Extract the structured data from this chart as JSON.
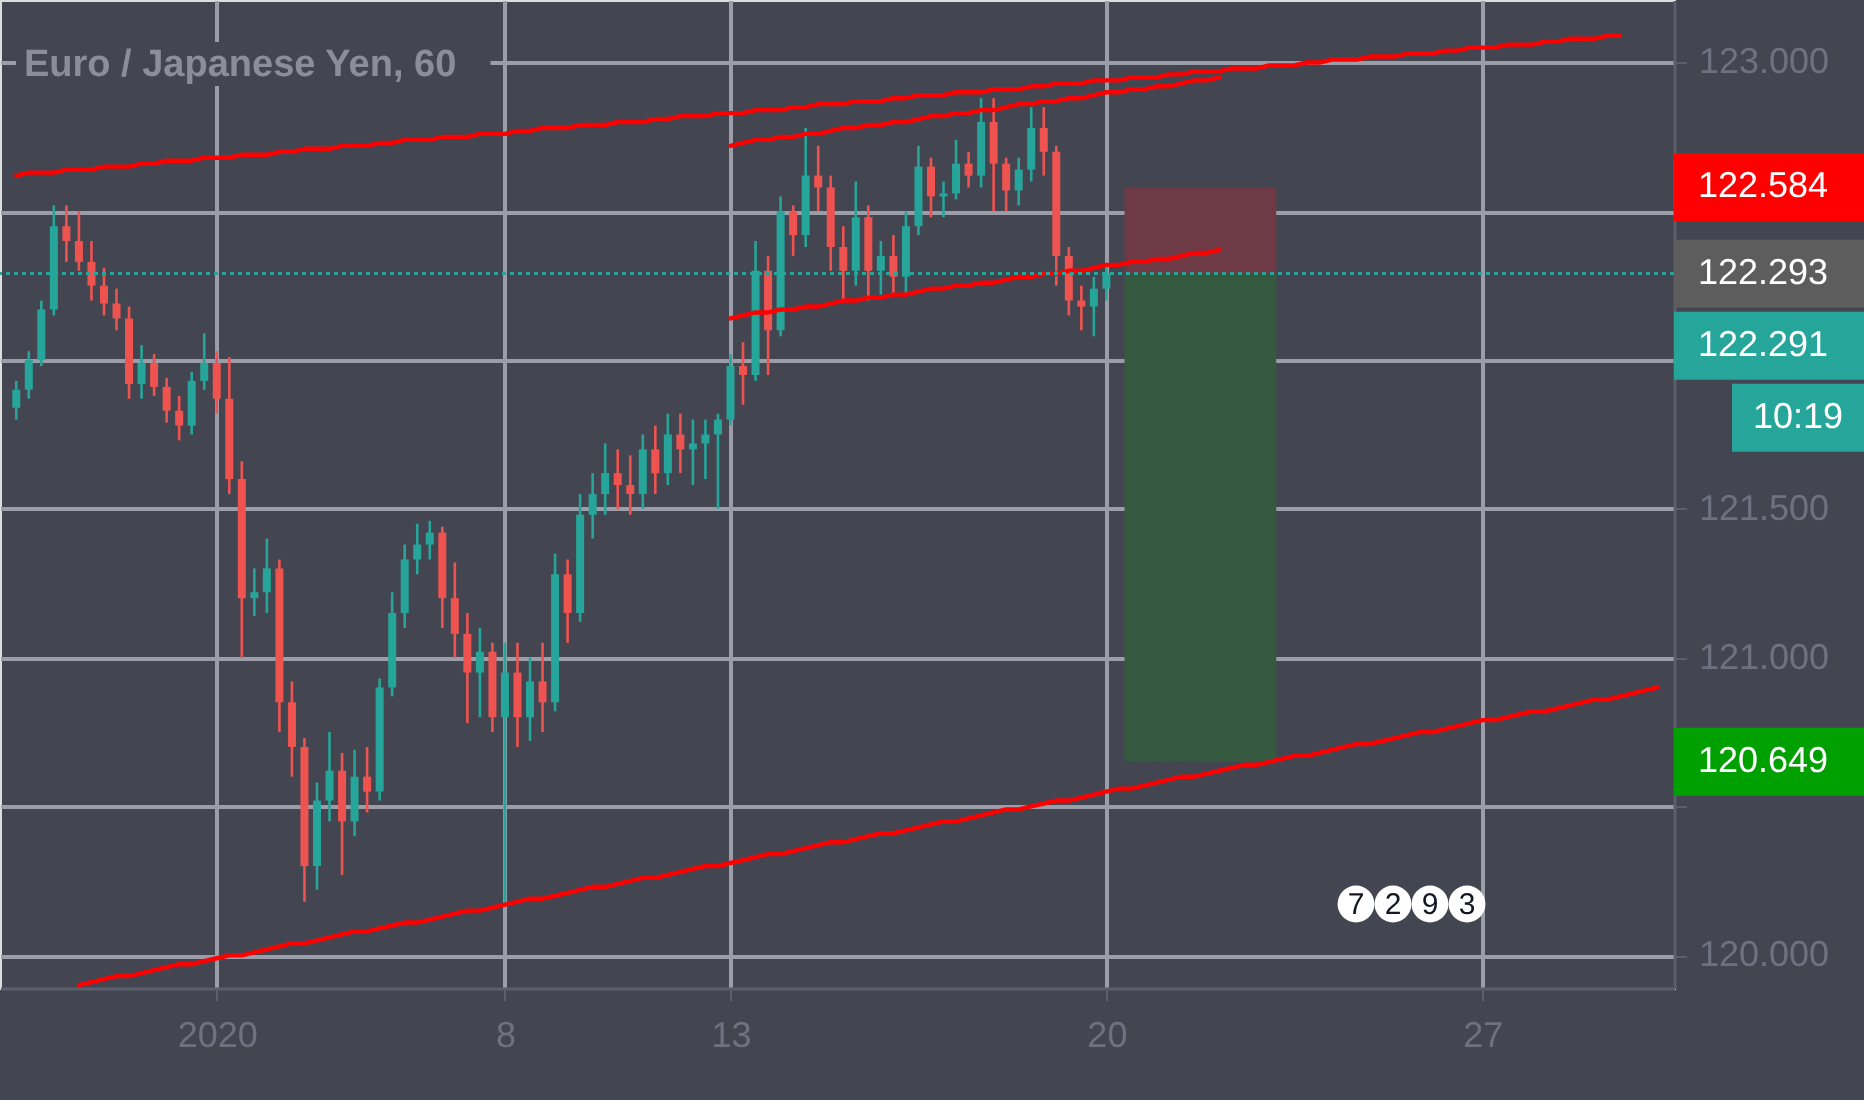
{
  "chart_data": {
    "type": "candlestick",
    "title": "Euro / Japanese Yen, 60",
    "categories": [
      null,
      null,
      null,
      null,
      null,
      null,
      null,
      null,
      null,
      null,
      null,
      null,
      null,
      null,
      null,
      null,
      "2020",
      null,
      null,
      null,
      null,
      null,
      null,
      null,
      null,
      null,
      null,
      null,
      null,
      null,
      null,
      null,
      null,
      null,
      null,
      null,
      null,
      null,
      null,
      "8",
      null,
      null,
      null,
      null,
      null,
      null,
      null,
      null,
      null,
      null,
      null,
      null,
      null,
      null,
      null,
      null,
      null,
      "13",
      null,
      null,
      null,
      null,
      null,
      null,
      null,
      null,
      null,
      null,
      null,
      null,
      null,
      null,
      null,
      null,
      null,
      null,
      null,
      null,
      null,
      null,
      null,
      null,
      null,
      null,
      null,
      null,
      null,
      "20",
      null,
      null,
      null,
      null,
      null,
      null,
      null,
      null,
      null,
      null,
      null,
      null,
      null,
      null,
      null,
      null,
      null,
      null,
      null,
      null,
      null,
      null,
      null,
      null,
      null,
      null,
      null,
      null,
      null,
      "27",
      null,
      null,
      null,
      null,
      null,
      null,
      null,
      null,
      null,
      null,
      null,
      null,
      null,
      null
    ],
    "ohlc": [
      [
        121.84,
        121.93,
        121.8,
        121.9
      ],
      [
        121.9,
        122.03,
        121.87,
        122.0
      ],
      [
        122.0,
        122.2,
        121.98,
        122.17
      ],
      [
        122.17,
        122.52,
        122.15,
        122.45
      ],
      [
        122.45,
        122.52,
        122.33,
        122.4
      ],
      [
        122.4,
        122.5,
        122.3,
        122.33
      ],
      [
        122.33,
        122.4,
        122.2,
        122.25
      ],
      [
        122.25,
        122.31,
        122.15,
        122.19
      ],
      [
        122.19,
        122.24,
        122.1,
        122.14
      ],
      [
        122.14,
        122.18,
        121.87,
        121.92
      ],
      [
        121.92,
        122.05,
        121.87,
        121.99
      ],
      [
        121.99,
        122.02,
        121.88,
        121.91
      ],
      [
        121.91,
        121.94,
        121.79,
        121.83
      ],
      [
        121.83,
        121.88,
        121.73,
        121.78
      ],
      [
        121.78,
        121.96,
        121.75,
        121.93
      ],
      [
        121.93,
        122.09,
        121.9,
        121.99
      ],
      [
        121.99,
        122.03,
        121.82,
        121.87
      ],
      [
        121.87,
        122.01,
        121.55,
        121.6
      ],
      [
        121.6,
        121.66,
        121.0,
        121.2
      ],
      [
        121.2,
        121.3,
        121.14,
        121.22
      ],
      [
        121.22,
        121.4,
        121.15,
        121.3
      ],
      [
        121.3,
        121.33,
        120.75,
        120.85
      ],
      [
        120.85,
        120.92,
        120.6,
        120.7
      ],
      [
        120.7,
        120.73,
        120.18,
        120.3
      ],
      [
        120.3,
        120.58,
        120.22,
        120.52
      ],
      [
        120.52,
        120.75,
        120.45,
        120.62
      ],
      [
        120.62,
        120.68,
        120.27,
        120.45
      ],
      [
        120.45,
        120.69,
        120.4,
        120.6
      ],
      [
        120.6,
        120.7,
        120.48,
        120.55
      ],
      [
        120.55,
        120.93,
        120.52,
        120.9
      ],
      [
        120.9,
        121.22,
        120.87,
        121.15
      ],
      [
        121.15,
        121.38,
        121.1,
        121.33
      ],
      [
        121.33,
        121.45,
        121.28,
        121.38
      ],
      [
        121.38,
        121.46,
        121.33,
        121.42
      ],
      [
        121.42,
        121.44,
        121.1,
        121.2
      ],
      [
        121.2,
        121.32,
        121.0,
        121.08
      ],
      [
        121.08,
        121.15,
        120.78,
        120.95
      ],
      [
        120.95,
        121.1,
        120.8,
        121.02
      ],
      [
        121.02,
        121.05,
        120.75,
        120.8
      ],
      [
        120.8,
        121.05,
        120.17,
        120.95
      ],
      [
        120.95,
        121.05,
        120.7,
        120.8
      ],
      [
        120.8,
        121.0,
        120.72,
        120.92
      ],
      [
        120.92,
        121.05,
        120.75,
        120.85
      ],
      [
        120.85,
        121.35,
        120.82,
        121.28
      ],
      [
        121.28,
        121.33,
        121.05,
        121.15
      ],
      [
        121.15,
        121.55,
        121.12,
        121.48
      ],
      [
        121.48,
        121.62,
        121.4,
        121.55
      ],
      [
        121.55,
        121.72,
        121.48,
        121.62
      ],
      [
        121.62,
        121.7,
        121.5,
        121.58
      ],
      [
        121.58,
        121.68,
        121.48,
        121.55
      ],
      [
        121.55,
        121.75,
        121.5,
        121.7
      ],
      [
        121.7,
        121.78,
        121.55,
        121.62
      ],
      [
        121.62,
        121.82,
        121.58,
        121.75
      ],
      [
        121.75,
        121.82,
        121.62,
        121.7
      ],
      [
        121.7,
        121.8,
        121.58,
        121.72
      ],
      [
        121.72,
        121.8,
        121.6,
        121.75
      ],
      [
        121.75,
        121.82,
        121.5,
        121.8
      ],
      [
        121.8,
        122.02,
        121.78,
        121.98
      ],
      [
        121.98,
        122.06,
        121.85,
        121.95
      ],
      [
        121.95,
        122.4,
        121.93,
        122.3
      ],
      [
        122.3,
        122.35,
        121.95,
        122.1
      ],
      [
        122.1,
        122.55,
        122.08,
        122.5
      ],
      [
        122.5,
        122.52,
        122.35,
        122.42
      ],
      [
        122.42,
        122.78,
        122.38,
        122.62
      ],
      [
        122.62,
        122.72,
        122.5,
        122.58
      ],
      [
        122.58,
        122.62,
        122.3,
        122.38
      ],
      [
        122.38,
        122.45,
        122.2,
        122.3
      ],
      [
        122.3,
        122.6,
        122.25,
        122.48
      ],
      [
        122.48,
        122.52,
        122.2,
        122.3
      ],
      [
        122.3,
        122.4,
        122.22,
        122.35
      ],
      [
        122.35,
        122.42,
        122.22,
        122.28
      ],
      [
        122.28,
        122.5,
        122.22,
        122.45
      ],
      [
        122.45,
        122.72,
        122.42,
        122.65
      ],
      [
        122.65,
        122.68,
        122.48,
        122.55
      ],
      [
        122.55,
        122.6,
        122.48,
        122.56
      ],
      [
        122.56,
        122.74,
        122.54,
        122.66
      ],
      [
        122.66,
        122.7,
        122.58,
        122.62
      ],
      [
        122.62,
        122.88,
        122.58,
        122.8
      ],
      [
        122.8,
        122.88,
        122.5,
        122.66
      ],
      [
        122.66,
        122.68,
        122.5,
        122.57
      ],
      [
        122.57,
        122.68,
        122.52,
        122.64
      ],
      [
        122.64,
        122.85,
        122.6,
        122.78
      ],
      [
        122.78,
        122.85,
        122.62,
        122.7
      ],
      [
        122.7,
        122.72,
        122.25,
        122.35
      ],
      [
        122.35,
        122.38,
        122.15,
        122.2
      ],
      [
        122.2,
        122.25,
        122.1,
        122.18
      ],
      [
        122.18,
        122.28,
        122.08,
        122.24
      ],
      [
        122.24,
        122.32,
        122.2,
        122.291
      ],
      null,
      null,
      null,
      null,
      null,
      null,
      null,
      null,
      null,
      null,
      null,
      null,
      null,
      null,
      null,
      null,
      null,
      null,
      null,
      null,
      null,
      null,
      null,
      null,
      null,
      null,
      null,
      null,
      null,
      null,
      null,
      null,
      null,
      null,
      null,
      null,
      null,
      null,
      null,
      null,
      null,
      null,
      null,
      null
    ],
    "colors": [
      "#26a69a",
      "#26a69a",
      "#26a69a",
      "#26a69a",
      "#ef5350",
      "#ef5350",
      "#ef5350",
      "#ef5350",
      "#ef5350",
      "#ef5350",
      "#26a69a",
      "#ef5350",
      "#ef5350",
      "#ef5350",
      "#26a69a",
      "#26a69a",
      "#ef5350",
      "#ef5350",
      "#ef5350",
      "#26a69a",
      "#26a69a",
      "#ef5350",
      "#ef5350",
      "#ef5350",
      "#26a69a",
      "#26a69a",
      "#ef5350",
      "#26a69a",
      "#ef5350",
      "#26a69a",
      "#26a69a",
      "#26a69a",
      "#26a69a",
      "#26a69a",
      "#ef5350",
      "#ef5350",
      "#ef5350",
      "#26a69a",
      "#ef5350",
      "#26a69a",
      "#ef5350",
      "#26a69a",
      "#ef5350",
      "#26a69a",
      "#ef5350",
      "#26a69a",
      "#26a69a",
      "#26a69a",
      "#ef5350",
      "#ef5350",
      "#26a69a",
      "#ef5350",
      "#26a69a",
      "#ef5350",
      "#26a69a",
      "#26a69a",
      "#26a69a",
      "#26a69a",
      "#ef5350",
      "#26a69a",
      "#ef5350",
      "#26a69a",
      "#ef5350",
      "#26a69a",
      "#ef5350",
      "#ef5350",
      "#ef5350",
      "#26a69a",
      "#ef5350",
      "#26a69a",
      "#ef5350",
      "#26a69a",
      "#26a69a",
      "#ef5350",
      "#26a69a",
      "#26a69a",
      "#ef5350",
      "#26a69a",
      "#ef5350",
      "#ef5350",
      "#26a69a",
      "#26a69a",
      "#ef5350",
      "#ef5350",
      "#ef5350",
      "#ef5350",
      "#26a69a",
      "#26a69a",
      null,
      null,
      null,
      null,
      null,
      null,
      null,
      null,
      null,
      null,
      null,
      null,
      null,
      null,
      null,
      null,
      null,
      null,
      null,
      null,
      null,
      null,
      null,
      null,
      null,
      null,
      null,
      null,
      null,
      null,
      null,
      null,
      null,
      null,
      null,
      null,
      null,
      null,
      null,
      null,
      null,
      null,
      null,
      null
    ],
    "series": [
      {
        "type": "bar",
        "color": "#6e3a46",
        "base": [
          null,
          null,
          null,
          null,
          null,
          null,
          null,
          null,
          null,
          null,
          null,
          null,
          null,
          null,
          null,
          null,
          null,
          null,
          null,
          null,
          null,
          null,
          null,
          null,
          null,
          null,
          null,
          null,
          null,
          null,
          null,
          null,
          null,
          null,
          null,
          null,
          null,
          null,
          null,
          null,
          null,
          null,
          null,
          null,
          null,
          null,
          null,
          null,
          null,
          null,
          null,
          null,
          null,
          null,
          null,
          null,
          null,
          null,
          null,
          null,
          null,
          null,
          null,
          null,
          null,
          null,
          null,
          null,
          null,
          null,
          null,
          null,
          null,
          null,
          null,
          null,
          null,
          null,
          null,
          null,
          null,
          null,
          null,
          null,
          null,
          null,
          null,
          null,
          null,
          122.29,
          122.29,
          122.29,
          122.29,
          122.29,
          122.29,
          122.29,
          122.29,
          122.29,
          122.29,
          122.29,
          122.29,
          null,
          null,
          null,
          null,
          null,
          null,
          null,
          null,
          null,
          null,
          null,
          null,
          null,
          null,
          null,
          null,
          null,
          null,
          null,
          null,
          null,
          null,
          null,
          null,
          null,
          null,
          null,
          null,
          null,
          null,
          null
        ],
        "values": [
          null,
          null,
          null,
          null,
          null,
          null,
          null,
          null,
          null,
          null,
          null,
          null,
          null,
          null,
          null,
          null,
          null,
          null,
          null,
          null,
          null,
          null,
          null,
          null,
          null,
          null,
          null,
          null,
          null,
          null,
          null,
          null,
          null,
          null,
          null,
          null,
          null,
          null,
          null,
          null,
          null,
          null,
          null,
          null,
          null,
          null,
          null,
          null,
          null,
          null,
          null,
          null,
          null,
          null,
          null,
          null,
          null,
          null,
          null,
          null,
          null,
          null,
          null,
          null,
          null,
          null,
          null,
          null,
          null,
          null,
          null,
          null,
          null,
          null,
          null,
          null,
          null,
          null,
          null,
          null,
          null,
          null,
          null,
          null,
          null,
          null,
          null,
          null,
          null,
          0.29,
          0.29,
          0.29,
          0.29,
          0.29,
          0.29,
          0.29,
          0.29,
          0.29,
          0.29,
          0.29,
          0.29,
          null,
          null,
          null,
          null,
          null,
          null,
          null,
          null,
          null,
          null,
          null,
          null,
          null,
          null,
          null,
          null,
          null,
          null,
          null,
          null,
          null,
          null,
          null,
          null,
          null,
          null,
          null,
          null,
          null,
          null,
          null
        ]
      },
      {
        "type": "bar",
        "color": "#365a40",
        "base": [
          null,
          null,
          null,
          null,
          null,
          null,
          null,
          null,
          null,
          null,
          null,
          null,
          null,
          null,
          null,
          null,
          null,
          null,
          null,
          null,
          null,
          null,
          null,
          null,
          null,
          null,
          null,
          null,
          null,
          null,
          null,
          null,
          null,
          null,
          null,
          null,
          null,
          null,
          null,
          null,
          null,
          null,
          null,
          null,
          null,
          null,
          null,
          null,
          null,
          null,
          null,
          null,
          null,
          null,
          null,
          null,
          null,
          null,
          null,
          null,
          null,
          null,
          null,
          null,
          null,
          null,
          null,
          null,
          null,
          null,
          null,
          null,
          null,
          null,
          null,
          null,
          null,
          null,
          null,
          null,
          null,
          null,
          null,
          null,
          null,
          null,
          null,
          null,
          null,
          120.65,
          120.65,
          120.65,
          120.65,
          120.65,
          120.65,
          120.65,
          120.65,
          120.65,
          120.65,
          120.65,
          120.65,
          null,
          null,
          null,
          null,
          null,
          null,
          null,
          null,
          null,
          null,
          null,
          null,
          null,
          null,
          null,
          null,
          null,
          null,
          null,
          null,
          null,
          null,
          null,
          null,
          null,
          null,
          null,
          null,
          null,
          null,
          null
        ],
        "values": [
          null,
          null,
          null,
          null,
          null,
          null,
          null,
          null,
          null,
          null,
          null,
          null,
          null,
          null,
          null,
          null,
          null,
          null,
          null,
          null,
          null,
          null,
          null,
          null,
          null,
          null,
          null,
          null,
          null,
          null,
          null,
          null,
          null,
          null,
          null,
          null,
          null,
          null,
          null,
          null,
          null,
          null,
          null,
          null,
          null,
          null,
          null,
          null,
          null,
          null,
          null,
          null,
          null,
          null,
          null,
          null,
          null,
          null,
          null,
          null,
          null,
          null,
          null,
          null,
          null,
          null,
          null,
          null,
          null,
          null,
          null,
          null,
          null,
          null,
          null,
          null,
          null,
          null,
          null,
          null,
          null,
          null,
          null,
          null,
          null,
          null,
          null,
          null,
          null,
          1.64,
          1.64,
          1.64,
          1.64,
          1.64,
          1.64,
          1.64,
          1.64,
          1.64,
          1.64,
          1.64,
          1.64,
          null,
          null,
          null,
          null,
          null,
          null,
          null,
          null,
          null,
          null,
          null,
          null,
          null,
          null,
          null,
          null,
          null,
          null,
          null,
          null,
          null,
          null,
          null,
          null,
          null,
          null,
          null,
          null,
          null,
          null,
          null
        ]
      },
      {
        "type": "line",
        "color": "#ff0000",
        "values": [
          122.62,
          122.63,
          122.63,
          122.63,
          122.64,
          122.64,
          122.64,
          122.65,
          122.65,
          122.65,
          122.66,
          122.66,
          122.67,
          122.67,
          122.67,
          122.68,
          122.68,
          122.68,
          122.69,
          122.69,
          122.69,
          122.7,
          122.7,
          122.71,
          122.71,
          122.71,
          122.72,
          122.72,
          122.72,
          122.73,
          122.73,
          122.74,
          122.74,
          122.74,
          122.75,
          122.75,
          122.75,
          122.76,
          122.76,
          122.76,
          122.77,
          122.77,
          122.78,
          122.78,
          122.78,
          122.79,
          122.79,
          122.79,
          122.8,
          122.8,
          122.8,
          122.81,
          122.81,
          122.82,
          122.82,
          122.82,
          122.83,
          122.83,
          122.83,
          122.84,
          122.84,
          122.84,
          122.85,
          122.85,
          122.86,
          122.86,
          122.86,
          122.87,
          122.87,
          122.87,
          122.88,
          122.88,
          122.89,
          122.89,
          122.89,
          122.9,
          122.9,
          122.9,
          122.91,
          122.91,
          122.91,
          122.92,
          122.92,
          122.93,
          122.93,
          122.93,
          122.94,
          122.94,
          122.94,
          122.95,
          122.95,
          122.95,
          122.96,
          122.96,
          122.97,
          122.97,
          122.97,
          122.98,
          122.98,
          122.98,
          122.99,
          122.99,
          122.99,
          123.0,
          123.0,
          123.01,
          123.01,
          123.01,
          123.02,
          123.02,
          123.02,
          123.03,
          123.03,
          123.03,
          123.04,
          123.04,
          123.05,
          123.05,
          123.05,
          123.06,
          123.06,
          123.06,
          123.07,
          123.07,
          123.08,
          123.08,
          123.08,
          123.09,
          123.09,
          null,
          null,
          null
        ]
      },
      {
        "type": "line",
        "color": "#ff0000",
        "values": [
          null,
          null,
          null,
          null,
          null,
          null,
          null,
          null,
          null,
          null,
          null,
          null,
          null,
          null,
          null,
          null,
          null,
          null,
          null,
          null,
          null,
          null,
          null,
          null,
          null,
          null,
          null,
          null,
          null,
          null,
          null,
          null,
          null,
          null,
          null,
          null,
          null,
          null,
          null,
          null,
          null,
          null,
          null,
          null,
          null,
          null,
          null,
          null,
          null,
          null,
          null,
          null,
          null,
          null,
          null,
          null,
          null,
          122.72,
          122.73,
          122.74,
          122.74,
          122.75,
          122.75,
          122.76,
          122.76,
          122.77,
          122.78,
          122.78,
          122.79,
          122.79,
          122.8,
          122.8,
          122.81,
          122.82,
          122.82,
          122.83,
          122.83,
          122.84,
          122.84,
          122.85,
          122.86,
          122.86,
          122.87,
          122.87,
          122.88,
          122.88,
          122.89,
          122.9,
          122.9,
          122.91,
          122.91,
          122.92,
          122.92,
          122.93,
          122.94,
          122.94,
          122.95,
          null,
          null,
          null,
          null,
          null,
          null,
          null,
          null,
          null,
          null,
          null,
          null,
          null,
          null,
          null,
          null,
          null,
          null,
          null,
          null,
          null,
          null,
          null,
          null,
          null,
          null,
          null,
          null,
          null,
          null,
          null,
          null,
          null,
          null,
          null
        ]
      },
      {
        "type": "line",
        "color": "#ff0000",
        "values": [
          null,
          null,
          null,
          null,
          null,
          null,
          null,
          null,
          null,
          null,
          null,
          null,
          null,
          null,
          null,
          null,
          null,
          null,
          null,
          null,
          null,
          null,
          null,
          null,
          null,
          null,
          null,
          null,
          null,
          null,
          null,
          null,
          null,
          null,
          null,
          null,
          null,
          null,
          null,
          null,
          null,
          null,
          null,
          null,
          null,
          null,
          null,
          null,
          null,
          null,
          null,
          null,
          null,
          null,
          null,
          null,
          null,
          122.14,
          122.15,
          122.16,
          122.16,
          122.17,
          122.17,
          122.18,
          122.18,
          122.19,
          122.2,
          122.2,
          122.21,
          122.21,
          122.22,
          122.22,
          122.23,
          122.24,
          122.24,
          122.25,
          122.25,
          122.26,
          122.26,
          122.27,
          122.28,
          122.28,
          122.29,
          122.29,
          122.3,
          122.3,
          122.31,
          122.32,
          122.32,
          122.33,
          122.33,
          122.34,
          122.34,
          122.35,
          122.36,
          122.36,
          122.37,
          null,
          null,
          null,
          null,
          null,
          null,
          null,
          null,
          null,
          null,
          null,
          null,
          null,
          null,
          null,
          null,
          null,
          null,
          null,
          null,
          null,
          null,
          null,
          null,
          null,
          null,
          null,
          null,
          null,
          null,
          null,
          null,
          null,
          null,
          null
        ]
      },
      {
        "type": "line",
        "color": "#ff0000",
        "values": [
          null,
          null,
          null,
          null,
          null,
          119.9,
          119.91,
          119.92,
          119.93,
          119.93,
          119.94,
          119.95,
          119.96,
          119.97,
          119.97,
          119.98,
          119.99,
          120.0,
          120.0,
          120.01,
          120.02,
          120.03,
          120.04,
          120.04,
          120.05,
          120.06,
          120.07,
          120.08,
          120.08,
          120.09,
          120.1,
          120.11,
          120.11,
          120.12,
          120.13,
          120.14,
          120.15,
          120.15,
          120.16,
          120.17,
          120.18,
          120.19,
          120.19,
          120.2,
          120.21,
          120.22,
          120.23,
          120.23,
          120.24,
          120.25,
          120.26,
          120.26,
          120.27,
          120.28,
          120.29,
          120.3,
          120.3,
          120.31,
          120.32,
          120.33,
          120.34,
          120.34,
          120.35,
          120.36,
          120.37,
          120.38,
          120.38,
          120.39,
          120.4,
          120.41,
          120.41,
          120.42,
          120.43,
          120.44,
          120.45,
          120.45,
          120.46,
          120.47,
          120.48,
          120.49,
          120.49,
          120.5,
          120.51,
          120.52,
          120.52,
          120.53,
          120.54,
          120.55,
          120.56,
          120.56,
          120.57,
          120.58,
          120.59,
          120.6,
          120.6,
          120.61,
          120.62,
          120.63,
          120.64,
          120.64,
          120.65,
          120.66,
          120.67,
          120.67,
          120.68,
          120.69,
          120.7,
          120.71,
          120.71,
          120.72,
          120.73,
          120.74,
          120.75,
          120.75,
          120.76,
          120.77,
          120.78,
          120.79,
          120.79,
          120.8,
          120.81,
          120.82,
          120.82,
          120.83,
          120.84,
          120.85,
          120.86,
          120.86,
          120.87,
          120.88,
          120.89,
          120.9
        ]
      }
    ],
    "ylim": [
      119.89,
      123.21
    ],
    "yticks": [
      {
        "value": 120,
        "label": "120.000"
      },
      {
        "value": 120.5,
        "label": null
      },
      {
        "value": 121,
        "label": "121.000"
      },
      {
        "value": 121.5,
        "label": "121.500"
      },
      {
        "value": 122,
        "label": null
      },
      {
        "value": 122.5,
        "label": null
      },
      {
        "value": 123,
        "label": "123.000"
      }
    ],
    "ref_lines": [
      {
        "axis": "y",
        "value": 122.291,
        "label": "122.291",
        "color": "#26a69a",
        "line_style": "dotted"
      }
    ],
    "annotations": [
      "122.584",
      "122.293",
      "120.649",
      "10:19",
      "7",
      "2",
      "9",
      "3"
    ],
    "grid": true
  }
}
